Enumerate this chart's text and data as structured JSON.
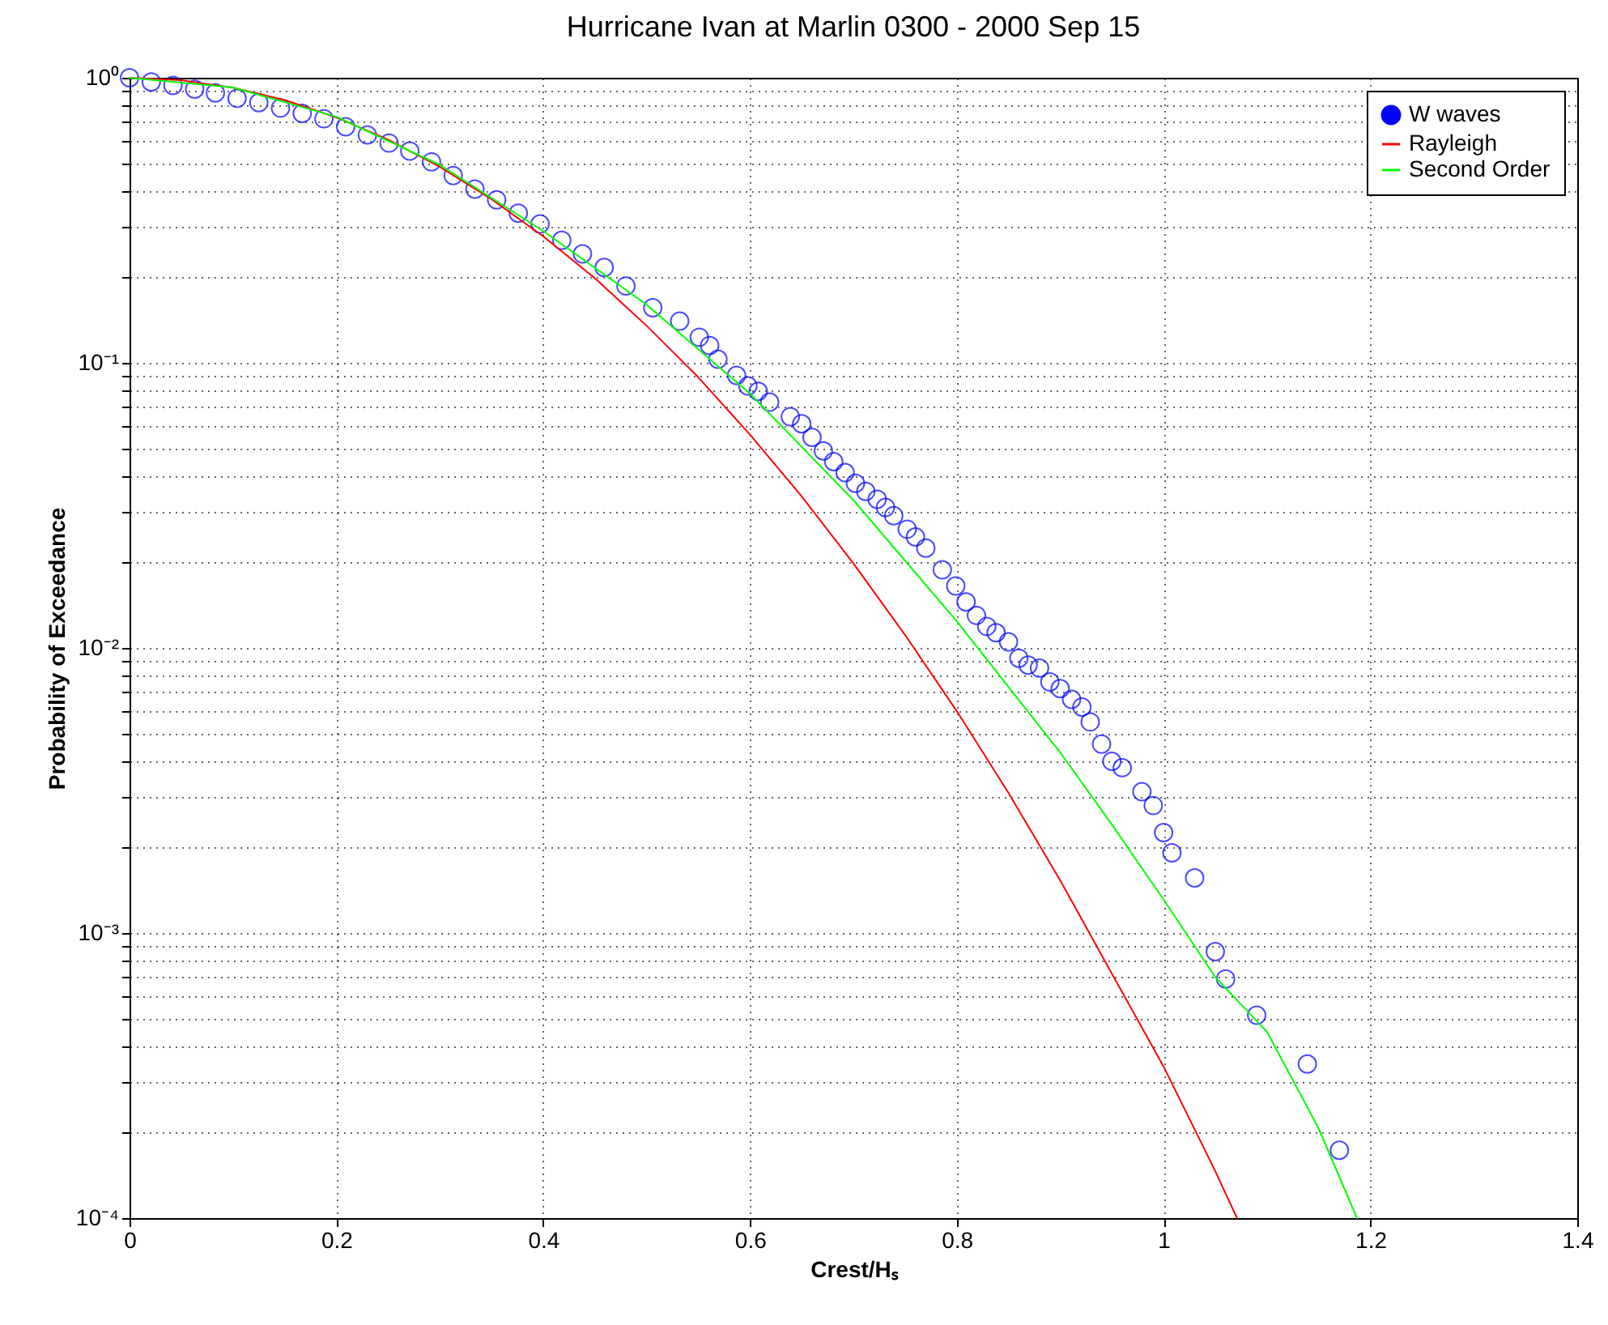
{
  "chart_data": {
    "type": "line",
    "title": "Hurricane Ivan at Marlin 0300 - 2000 Sep 15",
    "xlabel": "Crest/Hₛ",
    "ylabel": "Probability of Exceedance",
    "xlim": [
      0,
      1.4
    ],
    "xticks": [
      0,
      0.2,
      0.4,
      0.6,
      0.8,
      1,
      1.2,
      1.4
    ],
    "ylim": [
      0.0001,
      1
    ],
    "log": "y",
    "yticks": [
      {
        "value": 0.0001,
        "label": "10⁻⁴"
      },
      {
        "value": 0.0002,
        "label": null
      },
      {
        "value": 0.0003,
        "label": null
      },
      {
        "value": 0.0004,
        "label": null
      },
      {
        "value": 0.0005,
        "label": null
      },
      {
        "value": 0.0006,
        "label": null
      },
      {
        "value": 0.0007,
        "label": null
      },
      {
        "value": 0.0008,
        "label": null
      },
      {
        "value": 0.0009,
        "label": null
      },
      {
        "value": 0.001,
        "label": "10⁻³"
      },
      {
        "value": 0.002,
        "label": null
      },
      {
        "value": 0.003,
        "label": null
      },
      {
        "value": 0.004,
        "label": null
      },
      {
        "value": 0.005,
        "label": null
      },
      {
        "value": 0.006,
        "label": null
      },
      {
        "value": 0.007,
        "label": null
      },
      {
        "value": 0.008,
        "label": null
      },
      {
        "value": 0.009,
        "label": null
      },
      {
        "value": 0.01,
        "label": "10⁻²"
      },
      {
        "value": 0.02,
        "label": null
      },
      {
        "value": 0.03,
        "label": null
      },
      {
        "value": 0.04,
        "label": null
      },
      {
        "value": 0.05,
        "label": null
      },
      {
        "value": 0.06,
        "label": null
      },
      {
        "value": 0.07,
        "label": null
      },
      {
        "value": 0.08,
        "label": null
      },
      {
        "value": 0.09,
        "label": null
      },
      {
        "value": 0.1,
        "label": "10⁻¹"
      },
      {
        "value": 0.2,
        "label": null
      },
      {
        "value": 0.3,
        "label": null
      },
      {
        "value": 0.4,
        "label": null
      },
      {
        "value": 0.5,
        "label": null
      },
      {
        "value": 0.6,
        "label": null
      },
      {
        "value": 0.7,
        "label": null
      },
      {
        "value": 0.8,
        "label": null
      },
      {
        "value": 0.9,
        "label": null
      },
      {
        "value": 1,
        "label": "10⁰"
      }
    ],
    "grid": true,
    "legend": "top right",
    "series": [
      {
        "name": "W waves",
        "type": "scatter",
        "marker": "circle",
        "color": "#0000ff",
        "x": [
          0,
          0.021,
          0.042,
          0.063,
          0.083,
          0.104,
          0.125,
          0.146,
          0.167,
          0.188,
          0.209,
          0.23,
          0.251,
          0.271,
          0.292,
          0.313,
          0.334,
          0.355,
          0.376,
          0.397,
          0.418,
          0.438,
          0.459,
          0.48,
          0.506,
          0.532,
          0.551,
          0.561,
          0.569,
          0.587,
          0.598,
          0.608,
          0.619,
          0.639,
          0.65,
          0.66,
          0.671,
          0.681,
          0.692,
          0.702,
          0.712,
          0.723,
          0.731,
          0.739,
          0.752,
          0.76,
          0.77,
          0.786,
          0.799,
          0.809,
          0.819,
          0.829,
          0.838,
          0.85,
          0.86,
          0.869,
          0.88,
          0.89,
          0.9,
          0.911,
          0.921,
          0.929,
          0.94,
          0.95,
          0.96,
          0.979,
          0.99,
          1.0,
          1.008,
          1.03,
          1.05,
          1.06,
          1.09,
          1.139,
          1.17
        ],
        "values": [
          1,
          0.966,
          0.94,
          0.912,
          0.885,
          0.847,
          0.818,
          0.783,
          0.75,
          0.718,
          0.673,
          0.63,
          0.59,
          0.553,
          0.507,
          0.454,
          0.407,
          0.373,
          0.335,
          0.307,
          0.269,
          0.241,
          0.216,
          0.186,
          0.156,
          0.14,
          0.123,
          0.115,
          0.103,
          0.0904,
          0.083,
          0.0794,
          0.0728,
          0.0647,
          0.0611,
          0.0548,
          0.0491,
          0.045,
          0.0412,
          0.0378,
          0.0354,
          0.0332,
          0.0311,
          0.0291,
          0.0261,
          0.0245,
          0.0224,
          0.0188,
          0.0165,
          0.0145,
          0.013,
          0.0119,
          0.0113,
          0.0105,
          0.0092,
          0.0087,
          0.0085,
          0.0076,
          0.0072,
          0.0066,
          0.0062,
          0.0055,
          0.0046,
          0.004,
          0.0038,
          0.00313,
          0.0028,
          0.00225,
          0.00191,
          0.00156,
          0.00086,
          0.00069,
          0.000515,
          0.000347,
          0.000173
        ]
      },
      {
        "name": "Rayleigh",
        "color": "#ff0000",
        "x": [
          0,
          0.05,
          0.1,
          0.15,
          0.2,
          0.25,
          0.3,
          0.35,
          0.4,
          0.45,
          0.5,
          0.55,
          0.6,
          0.65,
          0.7,
          0.75,
          0.8,
          0.85,
          0.9,
          0.95,
          1.0,
          1.05,
          1.071
        ],
        "values": [
          1,
          0.98,
          0.923,
          0.835,
          0.726,
          0.607,
          0.487,
          0.375,
          0.278,
          0.198,
          0.135,
          0.089,
          0.056,
          0.034,
          0.0198,
          0.0111,
          0.006,
          0.0031,
          0.00153,
          0.00072,
          0.00034,
          0.000146,
          0.0001
        ]
      },
      {
        "name": "Second Order",
        "color": "#00ff00",
        "x": [
          0,
          0.1,
          0.2,
          0.3,
          0.4,
          0.5,
          0.6,
          0.7,
          0.8,
          0.9,
          0.95,
          1.0,
          1.05,
          1.1,
          1.15,
          1.187
        ],
        "values": [
          1,
          0.925,
          0.73,
          0.495,
          0.29,
          0.16,
          0.078,
          0.033,
          0.0124,
          0.0043,
          0.0024,
          0.00131,
          0.0007,
          0.00045,
          0.000206,
          0.0001
        ]
      }
    ]
  }
}
